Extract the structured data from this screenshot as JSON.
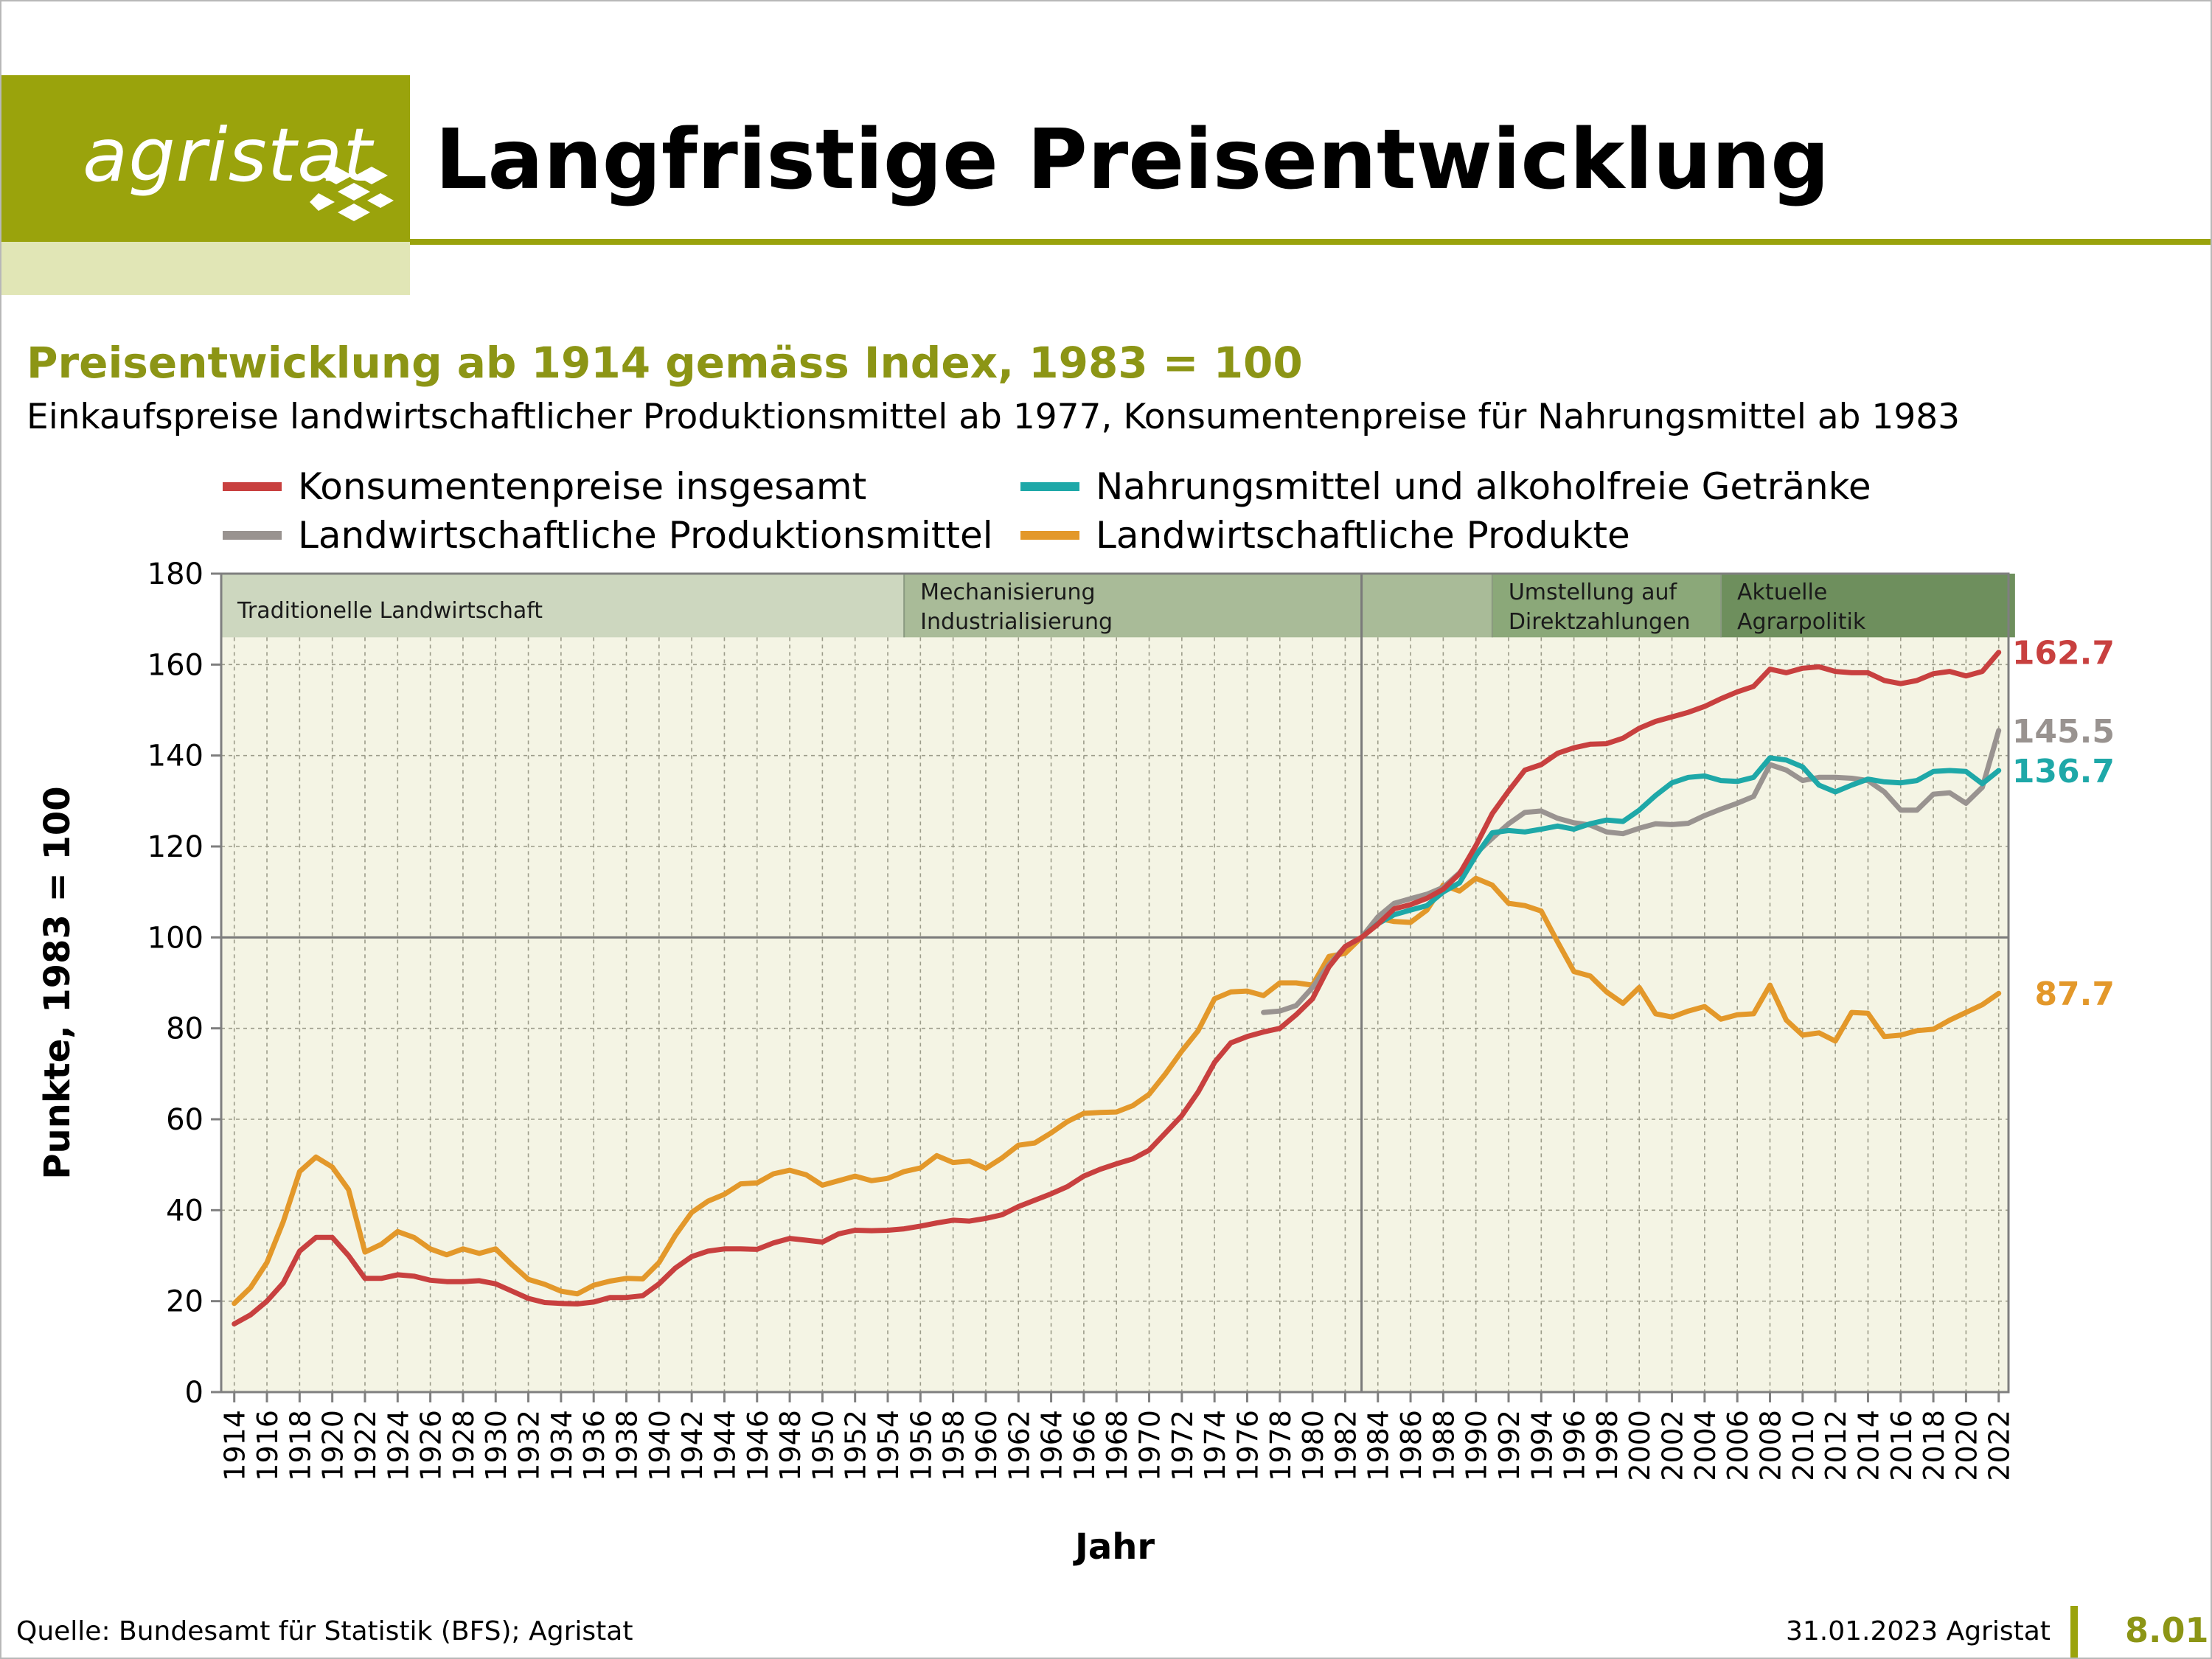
{
  "header": {
    "logo_text": "agristat",
    "title": "Langfristige Preisentwicklung",
    "brand_color": "#9aa30c"
  },
  "chart_header": {
    "subtitle": "Preisentwicklung ab 1914 gemäss Index, 1983 = 100",
    "description": "Einkaufspreise landwirtschaftlicher Produktionsmittel ab 1977, Konsumentenpreise für Nahrungsmittel ab 1983"
  },
  "footer": {
    "source": "Quelle: Bundesamt für Statistik (BFS); Agristat",
    "date": "31.01.2023 Agristat",
    "page_number": "8.01"
  },
  "chart_data": {
    "type": "line",
    "xlabel": "Jahr",
    "ylabel": "Punkte, 1983 = 100",
    "xlim": [
      1914,
      2022
    ],
    "ylim": [
      0,
      180
    ],
    "y_ticks": [
      0,
      20,
      40,
      60,
      80,
      100,
      120,
      140,
      160,
      180
    ],
    "x_ticks": [
      1914,
      1916,
      1918,
      1920,
      1922,
      1924,
      1926,
      1928,
      1930,
      1932,
      1934,
      1936,
      1938,
      1940,
      1942,
      1944,
      1946,
      1948,
      1950,
      1952,
      1954,
      1956,
      1958,
      1960,
      1962,
      1964,
      1966,
      1968,
      1970,
      1972,
      1974,
      1976,
      1978,
      1980,
      1982,
      1984,
      1986,
      1988,
      1990,
      1992,
      1994,
      1996,
      1998,
      2000,
      2002,
      2004,
      2006,
      2008,
      2010,
      2012,
      2014,
      2016,
      2018,
      2020,
      2022
    ],
    "grid": true,
    "reference_lines": {
      "y": 100,
      "x": 1983
    },
    "legend": {
      "position": "top"
    },
    "periods": [
      {
        "label": "Traditionelle Landwirtschaft",
        "lines": [
          "Traditionelle Landwirtschaft"
        ],
        "start": 1913.2,
        "end": 1955,
        "color": "#cdd7bf"
      },
      {
        "label": "Mechanisierung Industrialisierung",
        "lines": [
          "Mechanisierung",
          "Industrialisierung"
        ],
        "start": 1955,
        "end": 1983,
        "color": "#a9bb98"
      },
      {
        "label": "",
        "lines": [],
        "start": 1983,
        "end": 1991,
        "color": "#a9bb98"
      },
      {
        "label": "Umstellung auf Direktzahlungen",
        "lines": [
          "Umstellung auf",
          "Direktzahlungen"
        ],
        "start": 1991,
        "end": 2005,
        "color": "#8ba879"
      },
      {
        "label": "Aktuelle Agrarpolitik",
        "lines": [
          "Aktuelle",
          "Agrarpolitik"
        ],
        "start": 2005,
        "end": 2023,
        "color": "#6e8f5d"
      }
    ],
    "series": [
      {
        "name": "Konsumentenpreise insgesamt",
        "color": "#c8403f",
        "end_label": "162.7",
        "x": [
          1914,
          1915,
          1916,
          1917,
          1918,
          1919,
          1920,
          1921,
          1922,
          1923,
          1924,
          1925,
          1926,
          1927,
          1928,
          1929,
          1930,
          1931,
          1932,
          1933,
          1934,
          1935,
          1936,
          1937,
          1938,
          1939,
          1940,
          1941,
          1942,
          1943,
          1944,
          1945,
          1946,
          1947,
          1948,
          1949,
          1950,
          1951,
          1952,
          1953,
          1954,
          1955,
          1956,
          1957,
          1958,
          1959,
          1960,
          1961,
          1962,
          1963,
          1964,
          1965,
          1966,
          1967,
          1968,
          1969,
          1970,
          1971,
          1972,
          1973,
          1974,
          1975,
          1976,
          1977,
          1978,
          1979,
          1980,
          1981,
          1982,
          1983,
          1984,
          1985,
          1986,
          1987,
          1988,
          1989,
          1990,
          1991,
          1992,
          1993,
          1994,
          1995,
          1996,
          1997,
          1998,
          1999,
          2000,
          2001,
          2002,
          2003,
          2004,
          2005,
          2006,
          2007,
          2008,
          2009,
          2010,
          2011,
          2012,
          2013,
          2014,
          2015,
          2016,
          2017,
          2018,
          2019,
          2020,
          2021,
          2022
        ],
        "values": [
          15,
          17,
          20,
          24,
          31,
          34,
          34,
          30,
          25,
          25,
          25.8,
          25.5,
          24.6,
          24.3,
          24.3,
          24.5,
          23.8,
          22.2,
          20.6,
          19.7,
          19.5,
          19.4,
          19.8,
          20.8,
          20.8,
          21.2,
          23.8,
          27.3,
          29.8,
          31,
          31.5,
          31.5,
          31.4,
          32.8,
          33.8,
          33.4,
          33,
          34.8,
          35.6,
          35.5,
          35.6,
          35.9,
          36.5,
          37.2,
          37.8,
          37.6,
          38.2,
          39,
          40.8,
          42.2,
          43.6,
          45.2,
          47.5,
          49,
          50.2,
          51.3,
          53.2,
          57,
          60.8,
          66,
          72.5,
          76.8,
          78.2,
          79.2,
          80,
          83,
          86.5,
          93.5,
          98,
          100,
          102.9,
          106.3,
          107.2,
          108.6,
          110.6,
          114,
          120.2,
          127.2,
          132.2,
          136.8,
          138,
          140.5,
          141.7,
          142.5,
          142.6,
          143.8,
          146,
          147.5,
          148.5,
          149.5,
          150.8,
          152.5,
          154,
          155.2,
          159,
          158.2,
          159.2,
          159.5,
          158.5,
          158.2,
          158.2,
          156.5,
          155.8,
          156.5,
          158,
          158.5,
          157.5,
          158.5,
          162.7
        ]
      },
      {
        "name": "Nahrungsmittel und alkoholfreie Getränke",
        "color": "#1ea8a8",
        "end_label": "136.7",
        "x": [
          1983,
          1984,
          1985,
          1986,
          1987,
          1988,
          1989,
          1990,
          1991,
          1992,
          1993,
          1994,
          1995,
          1996,
          1997,
          1998,
          1999,
          2000,
          2001,
          2002,
          2003,
          2004,
          2005,
          2006,
          2007,
          2008,
          2009,
          2010,
          2011,
          2012,
          2013,
          2014,
          2015,
          2016,
          2017,
          2018,
          2019,
          2020,
          2021,
          2022
        ],
        "values": [
          100,
          103,
          105,
          106,
          107,
          110,
          112,
          118,
          123,
          123.5,
          123.2,
          123.8,
          124.5,
          123.8,
          125,
          125.8,
          125.5,
          128,
          131.2,
          134,
          135.2,
          135.5,
          134.5,
          134.3,
          135.2,
          139.5,
          139,
          137.5,
          133.5,
          132,
          133.5,
          134.8,
          134.2,
          134,
          134.5,
          136.5,
          136.7,
          136.5,
          133.8,
          136.7
        ]
      },
      {
        "name": "Landwirtschaftliche Produktionsmittel",
        "color": "#999390",
        "end_label": "145.5",
        "x": [
          1977,
          1978,
          1979,
          1980,
          1981,
          1982,
          1983,
          1984,
          1985,
          1986,
          1987,
          1988,
          1989,
          1990,
          1991,
          1992,
          1993,
          1994,
          1995,
          1996,
          1997,
          1998,
          1999,
          2000,
          2001,
          2002,
          2003,
          2004,
          2005,
          2006,
          2007,
          2008,
          2009,
          2010,
          2011,
          2012,
          2013,
          2014,
          2015,
          2016,
          2017,
          2018,
          2019,
          2020,
          2021,
          2022
        ],
        "values": [
          83.5,
          83.8,
          85,
          89,
          94,
          98,
          100,
          104.5,
          107.5,
          108.5,
          109.5,
          111,
          114.2,
          118.5,
          121.8,
          125,
          127.5,
          127.8,
          126.2,
          125.2,
          124.7,
          123.2,
          122.8,
          124,
          125,
          124.8,
          125.1,
          126.8,
          128.2,
          129.5,
          131,
          138,
          136.8,
          134.5,
          135.2,
          135.2,
          135,
          134.5,
          132,
          128,
          128,
          131.5,
          131.8,
          129.5,
          133,
          145.5
        ]
      },
      {
        "name": "Landwirtschaftliche Produkte",
        "color": "#e3982a",
        "end_label": "87.7",
        "x": [
          1914,
          1915,
          1916,
          1917,
          1918,
          1919,
          1920,
          1921,
          1922,
          1923,
          1924,
          1925,
          1926,
          1927,
          1928,
          1929,
          1930,
          1931,
          1932,
          1933,
          1934,
          1935,
          1936,
          1937,
          1938,
          1939,
          1940,
          1941,
          1942,
          1943,
          1944,
          1945,
          1946,
          1947,
          1948,
          1949,
          1950,
          1951,
          1952,
          1953,
          1954,
          1955,
          1956,
          1957,
          1958,
          1959,
          1960,
          1961,
          1962,
          1963,
          1964,
          1965,
          1966,
          1967,
          1968,
          1969,
          1970,
          1971,
          1972,
          1973,
          1974,
          1975,
          1976,
          1977,
          1978,
          1979,
          1980,
          1981,
          1982,
          1983,
          1984,
          1985,
          1986,
          1987,
          1988,
          1989,
          1990,
          1991,
          1992,
          1993,
          1994,
          1995,
          1996,
          1997,
          1998,
          1999,
          2000,
          2001,
          2002,
          2003,
          2004,
          2005,
          2006,
          2007,
          2008,
          2009,
          2010,
          2011,
          2012,
          2013,
          2014,
          2015,
          2016,
          2017,
          2018,
          2019,
          2020,
          2021,
          2022
        ],
        "values": [
          19.5,
          23,
          28.5,
          37.5,
          48.5,
          51.7,
          49.5,
          44.5,
          30.8,
          32.5,
          35.3,
          34,
          31.5,
          30.2,
          31.5,
          30.5,
          31.5,
          28,
          24.8,
          23.7,
          22.2,
          21.6,
          23.5,
          24.4,
          25,
          24.9,
          28.5,
          34.5,
          39.5,
          42,
          43.5,
          45.8,
          46,
          48,
          48.8,
          47.8,
          45.5,
          46.5,
          47.5,
          46.5,
          47,
          48.5,
          49.3,
          52,
          50.5,
          50.8,
          49.2,
          51.5,
          54.3,
          54.8,
          57,
          59.5,
          61.3,
          61.5,
          61.6,
          63,
          65.5,
          70,
          75,
          79.5,
          86.5,
          88,
          88.2,
          87.2,
          90,
          90,
          89.5,
          95.8,
          96.5,
          100,
          104.2,
          103.5,
          103.3,
          106,
          111.5,
          110.2,
          113,
          111.5,
          107.5,
          107,
          105.8,
          99,
          92.5,
          91.5,
          88,
          85.5,
          89,
          83.2,
          82.5,
          83.8,
          84.8,
          82,
          83,
          83.2,
          89.5,
          81.8,
          78.5,
          79,
          77.2,
          83.5,
          83.3,
          78.2,
          78.5,
          79.5,
          79.8,
          81.8,
          83.5,
          85.2,
          87.7
        ]
      }
    ]
  }
}
